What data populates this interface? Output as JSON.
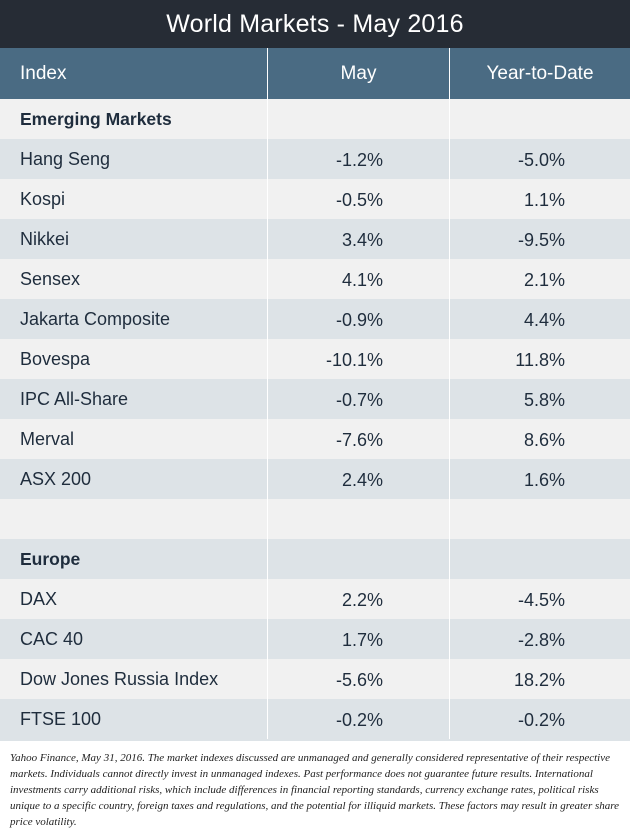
{
  "title": "World Markets - May 2016",
  "chart_data": {
    "type": "table",
    "title": "World Markets - May 2016",
    "columns": [
      "Index",
      "May",
      "Year-to-Date"
    ],
    "sections": [
      {
        "name": "Emerging Markets",
        "rows": [
          {
            "index": "Hang Seng",
            "may": "-1.2%",
            "ytd": "-5.0%"
          },
          {
            "index": "Kospi",
            "may": "-0.5%",
            "ytd": "1.1%"
          },
          {
            "index": "Nikkei",
            "may": "3.4%",
            "ytd": "-9.5%"
          },
          {
            "index": "Sensex",
            "may": "4.1%",
            "ytd": "2.1%"
          },
          {
            "index": "Jakarta Composite",
            "may": "-0.9%",
            "ytd": "4.4%"
          },
          {
            "index": "Bovespa",
            "may": "-10.1%",
            "ytd": "11.8%"
          },
          {
            "index": "IPC All-Share",
            "may": "-0.7%",
            "ytd": "5.8%"
          },
          {
            "index": "Merval",
            "may": "-7.6%",
            "ytd": "8.6%"
          },
          {
            "index": "ASX 200",
            "may": "2.4%",
            "ytd": "1.6%"
          }
        ]
      },
      {
        "name": "Europe",
        "rows": [
          {
            "index": "DAX",
            "may": "2.2%",
            "ytd": "-4.5%"
          },
          {
            "index": "CAC 40",
            "may": "1.7%",
            "ytd": "-2.8%"
          },
          {
            "index": "Dow Jones Russia Index",
            "may": "-5.6%",
            "ytd": "18.2%"
          },
          {
            "index": "FTSE 100",
            "may": "-0.2%",
            "ytd": "-0.2%"
          }
        ]
      }
    ]
  },
  "colors": {
    "title_bg": "#262c35",
    "header_bg": "#4a6b83",
    "row_light": "#f1f1f1",
    "row_dark": "#dde3e7",
    "text": "#1f2d3d"
  },
  "footnote": "Yahoo Finance, May 31, 2016. The market indexes discussed are unmanaged and generally considered representative of their respective markets. Individuals cannot directly invest in unmanaged indexes. Past performance does not guarantee future results. International investments carry additional risks, which include differences in financial reporting standards, currency exchange rates, political risks unique to a specific country, foreign taxes and regulations, and the potential for illiquid markets. These factors may result in greater share price volatility."
}
